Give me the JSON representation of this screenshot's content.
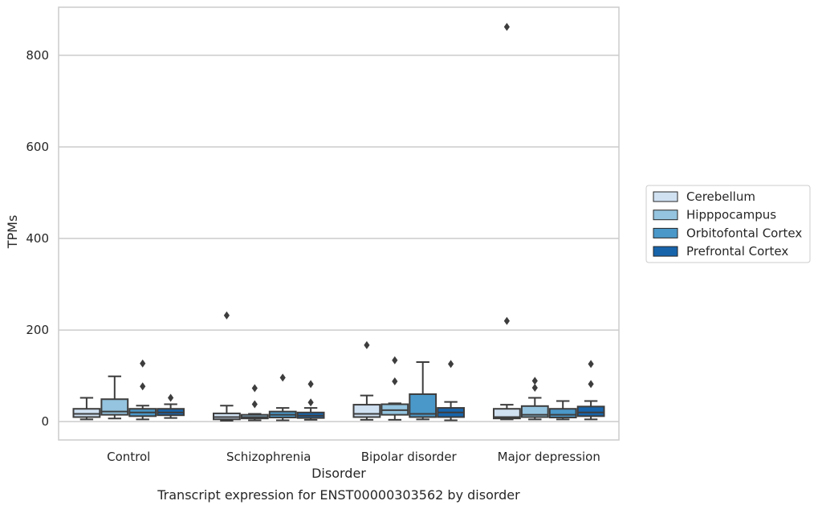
{
  "chart_data": {
    "type": "box",
    "xlabel": "Disorder",
    "ylabel": "TPMs",
    "caption": "Transcript expression for ENST00000303562 by disorder",
    "ylim": [
      -40,
      905
    ],
    "yticks": [
      0,
      200,
      400,
      600,
      800
    ],
    "grid": "horizontal",
    "legend_position": "right",
    "categories": [
      "Control",
      "Schizophrenia",
      "Bipolar disorder",
      "Major depression"
    ],
    "series": [
      {
        "name": "Cerebellum",
        "color": "#d0e1f2",
        "boxes": [
          {
            "whislo": 5,
            "q1": 10,
            "med": 17,
            "q3": 28,
            "whishi": 52,
            "fliers": []
          },
          {
            "whislo": 2,
            "q1": 5,
            "med": 10,
            "q3": 18,
            "whishi": 35,
            "fliers": [
              232
            ]
          },
          {
            "whislo": 4,
            "q1": 10,
            "med": 17,
            "q3": 37,
            "whishi": 57,
            "fliers": [
              167
            ]
          },
          {
            "whislo": 5,
            "q1": 7,
            "med": 10,
            "q3": 28,
            "whishi": 37,
            "fliers": [
              220,
              862
            ]
          }
        ]
      },
      {
        "name": "Hipppocampus",
        "color": "#94c4df",
        "boxes": [
          {
            "whislo": 7,
            "q1": 15,
            "med": 22,
            "q3": 49,
            "whishi": 99,
            "fliers": []
          },
          {
            "whislo": 3,
            "q1": 7,
            "med": 10,
            "q3": 15,
            "whishi": 17,
            "fliers": [
              38,
              73
            ]
          },
          {
            "whislo": 4,
            "q1": 15,
            "med": 25,
            "q3": 38,
            "whishi": 40,
            "fliers": [
              88,
              134
            ]
          },
          {
            "whislo": 5,
            "q1": 10,
            "med": 15,
            "q3": 34,
            "whishi": 52,
            "fliers": [
              74,
              89
            ]
          }
        ]
      },
      {
        "name": "Orbitofontal Cortex",
        "color": "#4a98c9",
        "boxes": [
          {
            "whislo": 5,
            "q1": 12,
            "med": 20,
            "q3": 28,
            "whishi": 35,
            "fliers": [
              77,
              127
            ]
          },
          {
            "whislo": 3,
            "q1": 9,
            "med": 15,
            "q3": 22,
            "whishi": 30,
            "fliers": [
              96
            ]
          },
          {
            "whislo": 5,
            "q1": 10,
            "med": 17,
            "q3": 60,
            "whishi": 130,
            "fliers": []
          },
          {
            "whislo": 5,
            "q1": 9,
            "med": 15,
            "q3": 28,
            "whishi": 45,
            "fliers": []
          }
        ]
      },
      {
        "name": "Prefrontal Cortex",
        "color": "#1764ab",
        "boxes": [
          {
            "whislo": 8,
            "q1": 14,
            "med": 20,
            "q3": 28,
            "whishi": 38,
            "fliers": [
              52
            ]
          },
          {
            "whislo": 4,
            "q1": 8,
            "med": 13,
            "q3": 20,
            "whishi": 30,
            "fliers": [
              42,
              82
            ]
          },
          {
            "whislo": 3,
            "q1": 10,
            "med": 20,
            "q3": 30,
            "whishi": 43,
            "fliers": [
              126
            ]
          },
          {
            "whislo": 5,
            "q1": 12,
            "med": 20,
            "q3": 33,
            "whishi": 45,
            "fliers": [
              82,
              126
            ]
          }
        ]
      }
    ]
  }
}
